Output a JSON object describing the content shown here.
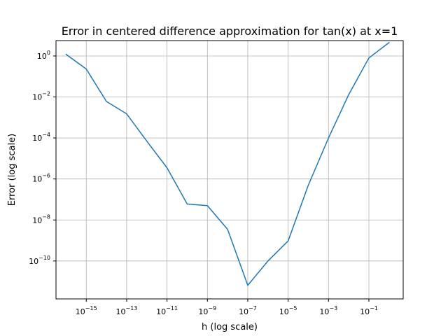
{
  "chart_data": {
    "type": "line",
    "title": "Error in centered difference approximation for tan(x) at x=1",
    "xlabel": "h (log scale)",
    "ylabel": "Error (log scale)",
    "xscale": "log",
    "yscale": "log",
    "grid": true,
    "xlim": [
      1e-16,
      10.0
    ],
    "ylim": [
      1e-12,
      10.0
    ],
    "x_ticks": [
      1e-15,
      1e-13,
      1e-11,
      1e-09,
      1e-07,
      1e-05,
      0.001,
      0.1
    ],
    "x_tick_labels": [
      {
        "base": "10",
        "exp": "−15"
      },
      {
        "base": "10",
        "exp": "−13"
      },
      {
        "base": "10",
        "exp": "−11"
      },
      {
        "base": "10",
        "exp": "−9"
      },
      {
        "base": "10",
        "exp": "−7"
      },
      {
        "base": "10",
        "exp": "−5"
      },
      {
        "base": "10",
        "exp": "−3"
      },
      {
        "base": "10",
        "exp": "−1"
      }
    ],
    "y_ticks": [
      1e-10,
      1e-08,
      1e-06,
      0.0001,
      0.01,
      1.0
    ],
    "y_tick_labels": [
      {
        "base": "10",
        "exp": "−10"
      },
      {
        "base": "10",
        "exp": "−8"
      },
      {
        "base": "10",
        "exp": "−6"
      },
      {
        "base": "10",
        "exp": "−4"
      },
      {
        "base": "10",
        "exp": "−2"
      },
      {
        "base": "10",
        "exp": "0"
      }
    ],
    "series": [
      {
        "color": "#1f77b4",
        "x": [
          1e-16,
          1e-15,
          1e-14,
          1e-13,
          1e-12,
          1e-11,
          1e-10,
          1e-09,
          1e-08,
          1e-07,
          1e-06,
          1e-05,
          0.0001,
          0.001,
          0.01,
          0.1,
          1.0
        ],
        "y": [
          1.2,
          0.23,
          0.006,
          0.0015,
          7e-05,
          3.5e-06,
          6e-08,
          5e-08,
          3.5e-09,
          6.5e-12,
          1e-10,
          9.5e-10,
          5e-07,
          0.0001,
          0.013,
          0.8,
          4.5
        ]
      }
    ]
  }
}
